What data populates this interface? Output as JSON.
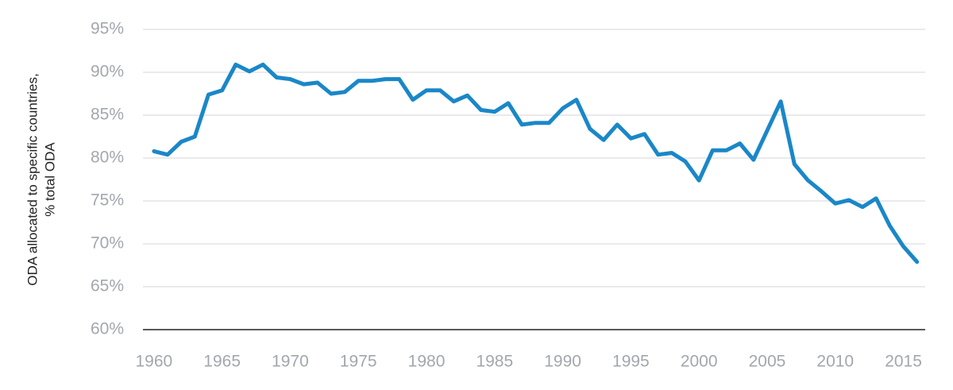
{
  "chart_data": {
    "type": "line",
    "ylabel": [
      "ODA allocated to specific countries,",
      "% total ODA"
    ],
    "x": [
      1960,
      1961,
      1962,
      1963,
      1964,
      1965,
      1966,
      1967,
      1968,
      1969,
      1970,
      1971,
      1972,
      1973,
      1974,
      1975,
      1976,
      1977,
      1978,
      1979,
      1980,
      1981,
      1982,
      1983,
      1984,
      1985,
      1986,
      1987,
      1988,
      1989,
      1990,
      1991,
      1992,
      1993,
      1994,
      1995,
      1996,
      1997,
      1998,
      1999,
      2000,
      2001,
      2002,
      2003,
      2004,
      2005,
      2006,
      2007,
      2008,
      2009,
      2010,
      2011,
      2012,
      2013,
      2014,
      2015,
      2016
    ],
    "values": [
      80.8,
      80.4,
      81.9,
      82.5,
      87.4,
      87.9,
      90.9,
      90.1,
      90.9,
      89.4,
      89.2,
      88.6,
      88.8,
      87.5,
      87.7,
      89.0,
      89.0,
      89.2,
      89.2,
      86.8,
      87.9,
      87.9,
      86.6,
      87.3,
      85.6,
      85.4,
      86.4,
      83.9,
      84.1,
      84.1,
      85.8,
      86.8,
      83.4,
      82.1,
      83.9,
      82.3,
      82.8,
      80.4,
      80.6,
      79.6,
      77.4,
      80.9,
      80.9,
      81.7,
      79.8,
      83.2,
      86.6,
      79.3,
      77.4,
      76.1,
      74.7,
      75.1,
      74.3,
      75.3,
      72.1,
      69.7,
      67.9
    ],
    "color": "#1a87c8",
    "xlim": [
      1959.6,
      2016.6
    ],
    "xticks": [
      1960,
      1965,
      1970,
      1975,
      1980,
      1985,
      1990,
      1995,
      2000,
      2005,
      2010,
      2015
    ],
    "ylim": [
      60,
      95
    ],
    "yticks": [
      {
        "value": 60,
        "label": "60%"
      },
      {
        "value": 65,
        "label": "65%"
      },
      {
        "value": 70,
        "label": "70%"
      },
      {
        "value": 75,
        "label": "75%"
      },
      {
        "value": 80,
        "label": "80%"
      },
      {
        "value": 85,
        "label": "85%"
      },
      {
        "value": 90,
        "label": "90%"
      },
      {
        "value": 95,
        "label": "95%"
      }
    ],
    "grid": true
  }
}
